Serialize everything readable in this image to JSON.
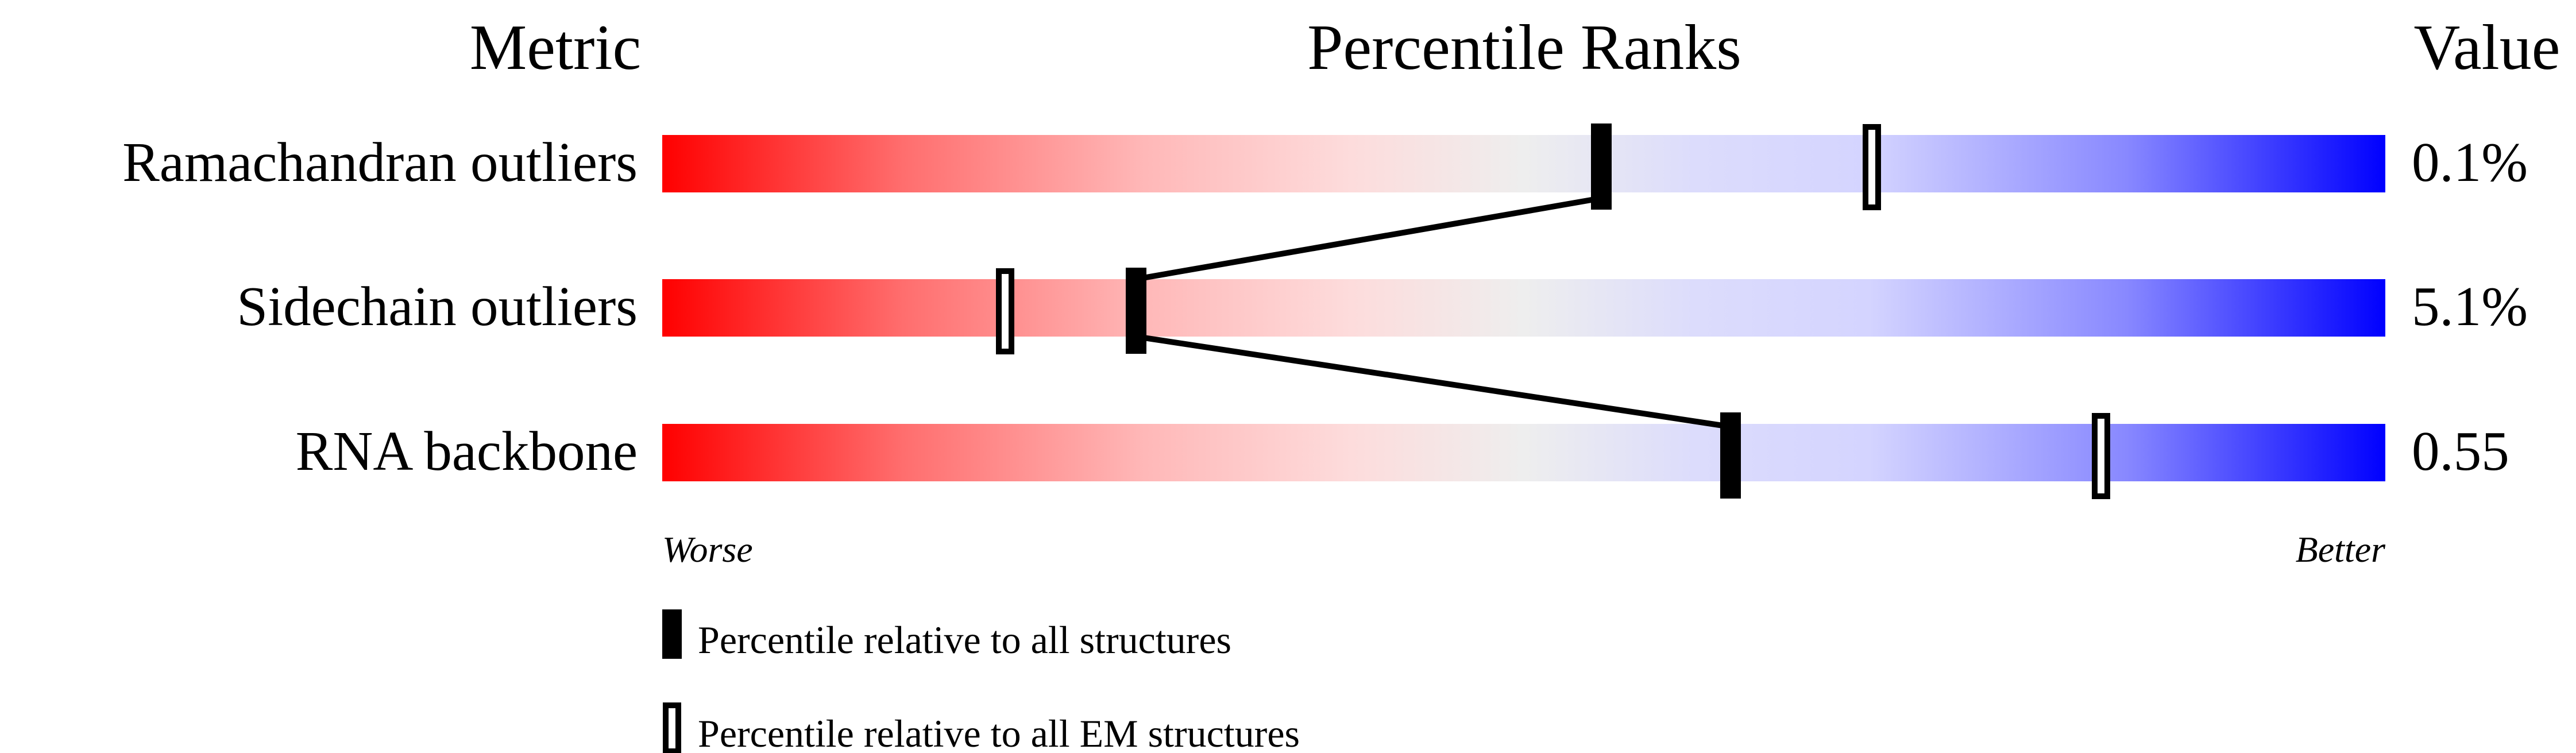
{
  "chart_data": {
    "type": "percentile-bar",
    "headers": {
      "metric": "Metric",
      "percentile": "Percentile Ranks",
      "value": "Value"
    },
    "axis_labels": {
      "left": "Worse",
      "right": "Better"
    },
    "xlim": [
      0,
      100
    ],
    "rows": [
      {
        "metric": "Ramachandran outliers",
        "value": "0.1%",
        "percentile_all": 54.5,
        "percentile_em": 70.2
      },
      {
        "metric": "Sidechain outliers",
        "value": "5.1%",
        "percentile_all": 27.5,
        "percentile_em": 19.9
      },
      {
        "metric": "RNA backbone",
        "value": "0.55",
        "percentile_all": 62.0,
        "percentile_em": 83.5
      }
    ],
    "legend": {
      "all": "Percentile relative to all structures",
      "em": "Percentile relative to all EM structures"
    },
    "colors": {
      "worse": "#ff0000",
      "middle": "#eeeeee",
      "better": "#0000ff",
      "marker": "#000000"
    }
  }
}
